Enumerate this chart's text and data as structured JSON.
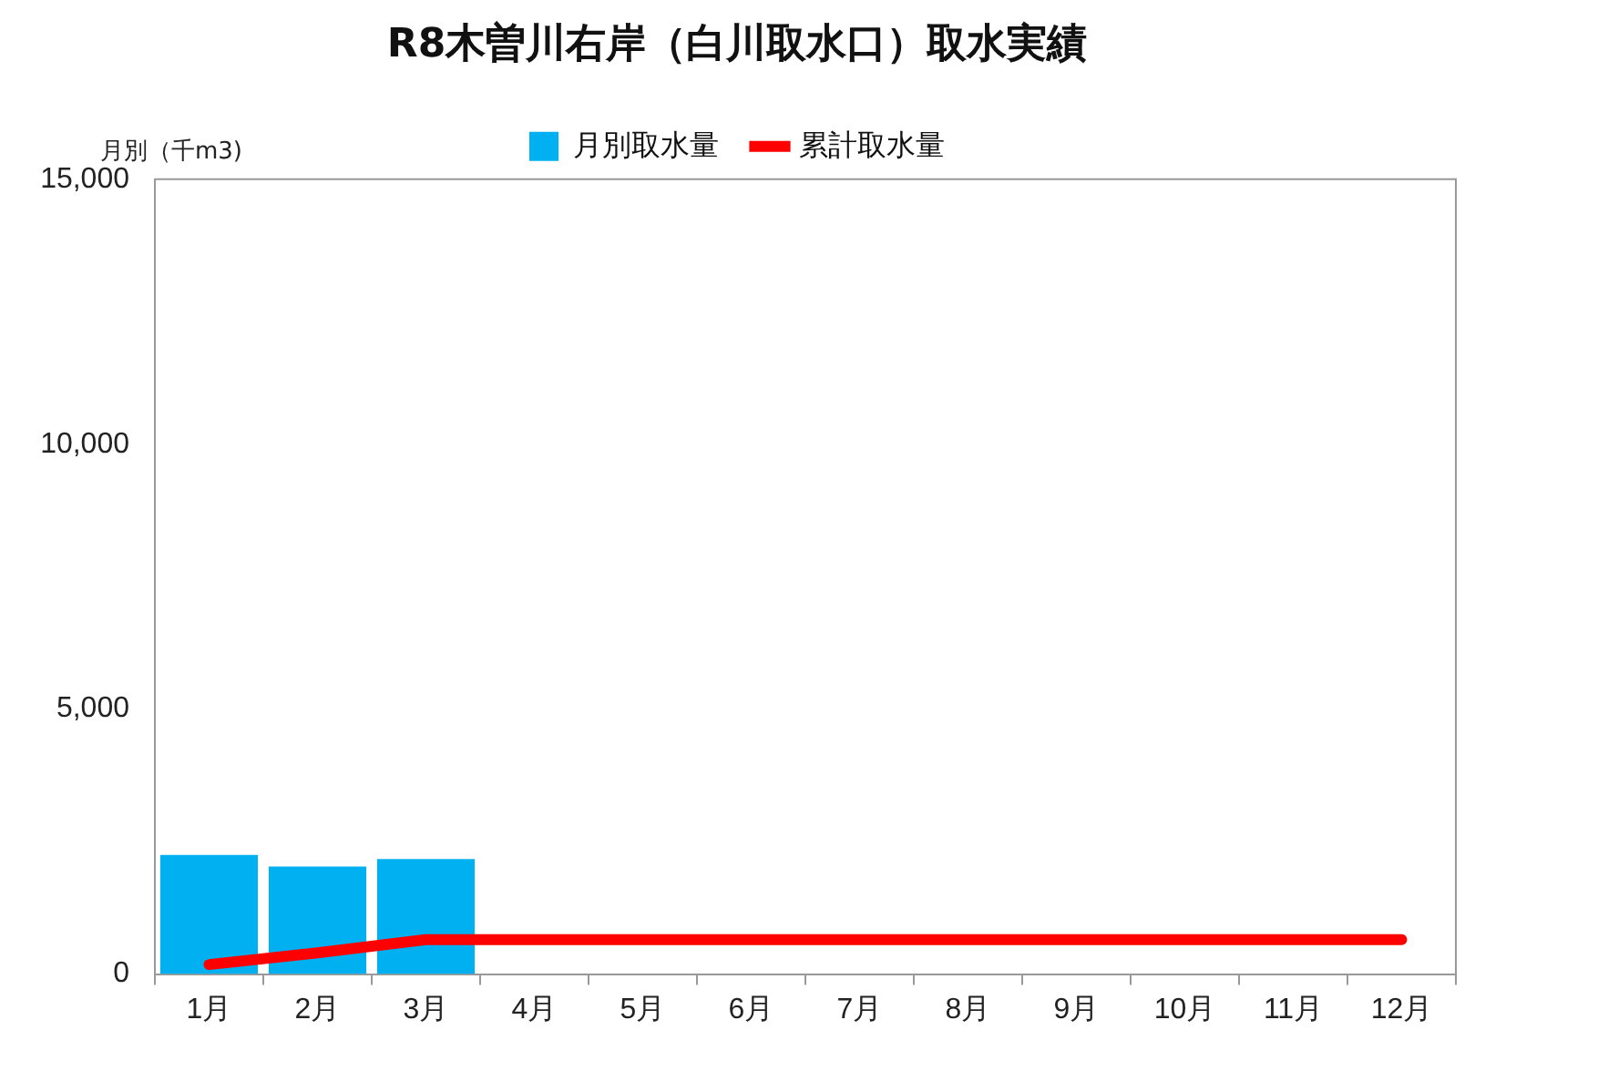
{
  "chart_data": {
    "type": "bar",
    "title": "R8木曽川右岸（白川取水口）取水実績",
    "ylabel": "月別（千m3)",
    "categories": [
      "1月",
      "2月",
      "3月",
      "4月",
      "5月",
      "6月",
      "7月",
      "8月",
      "9月",
      "10月",
      "11月",
      "12月"
    ],
    "series": [
      {
        "name": "月別取水量",
        "color": "#00b0f0",
        "values": [
          2250,
          2030,
          2170,
          null,
          null,
          null,
          null,
          null,
          null,
          null,
          null,
          null
        ]
      },
      {
        "name": "累計取水量",
        "type": "line",
        "color": "#ff0000",
        "marker": "none",
        "values": [
          180,
          400,
          650,
          650,
          650,
          650,
          650,
          650,
          650,
          650,
          650,
          650
        ]
      }
    ],
    "ylim": [
      0,
      15000
    ],
    "yticks": [
      0,
      {
        "value": 5000,
        "label": "5,000"
      },
      {
        "value": 10000,
        "label": "10,000"
      },
      {
        "value": 15000,
        "label": "15,000"
      }
    ],
    "grid": false,
    "legend": "top"
  }
}
